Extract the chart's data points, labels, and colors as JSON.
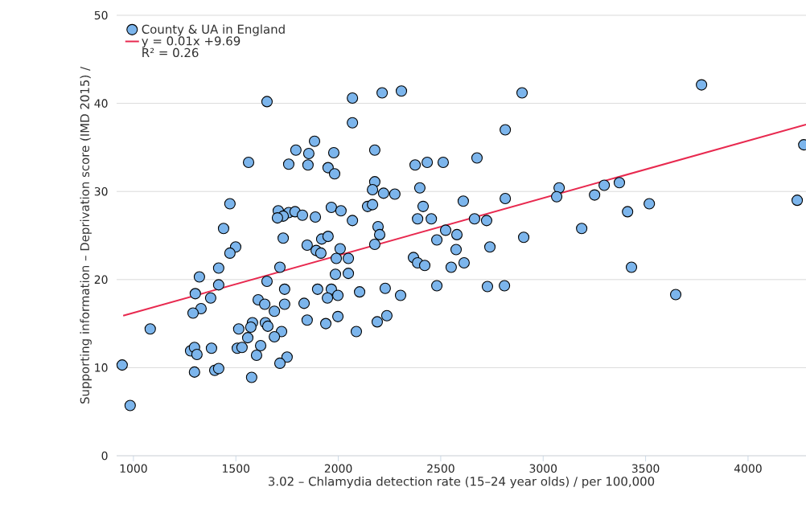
{
  "chart_data": {
    "type": "scatter",
    "xlabel": "3.02 – Chlamydia detection rate (15–24 year olds) / per 100,000",
    "ylabel": "Supporting information – Deprivation score (IMD 2015) /",
    "xlim": [
      918,
      4283
    ],
    "ylim": [
      0,
      50
    ],
    "xticks": [
      1000,
      1500,
      2000,
      2500,
      3000,
      3500,
      4000
    ],
    "yticks": [
      0,
      10,
      20,
      30,
      40,
      50
    ],
    "grid": "y",
    "legend": "top left",
    "annotations": [
      "R² = 0.26"
    ],
    "series": [
      {
        "name": "County & UA in England",
        "color": "#7cb5ec",
        "marker": "circle",
        "x": [
          945,
          984,
          1082,
          1440,
          1499,
          1471,
          1731,
          1848,
          1919,
          1950,
          1892,
          1915,
          2009,
          1990,
          1322,
          1416,
          1416,
          1302,
          1377,
          1330,
          1291,
          1715,
          1652,
          1738,
          1609,
          1641,
          1738,
          1688,
          1833,
          1848,
          1899,
          1966,
          1947,
          1998,
          1939,
          1998,
          1581,
          1514,
          1573,
          1644,
          1656,
          1723,
          1688,
          1558,
          1621,
          1507,
          1530,
          1601,
          1750,
          1715,
          1279,
          1298,
          1310,
          1381,
          1298,
          1397,
          1416,
          1577,
          1652,
          1562,
          1884,
          1793,
          1856,
          1978,
          1758,
          1852,
          1950,
          1982,
          1471,
          1707,
          1758,
          1789,
          1731,
          1825,
          1888,
          1703,
          1966,
          2013,
          2069,
          2214,
          2308,
          2897,
          2069,
          2815,
          2178,
          2375,
          2434,
          2512,
          2677,
          2178,
          2167,
          2221,
          2276,
          2398,
          3078,
          3066,
          2815,
          2069,
          2143,
          2167,
          2414,
          2610,
          2387,
          2454,
          2665,
          2724,
          2194,
          2202,
          2524,
          2579,
          2905,
          2178,
          2049,
          1986,
          2049,
          2481,
          2575,
          2740,
          2367,
          2387,
          2422,
          2551,
          2614,
          2481,
          2728,
          2811,
          2104,
          2229,
          2304,
          2237,
          2190,
          2088,
          3773,
          4272,
          3298,
          3372,
          3251,
          3518,
          3412,
          3188,
          4240,
          3431,
          3647
        ],
        "values": [
          10.3,
          5.7,
          14.4,
          25.8,
          23.7,
          23.0,
          24.7,
          23.9,
          24.6,
          24.9,
          23.3,
          23.0,
          23.5,
          22.4,
          20.3,
          21.3,
          19.4,
          18.4,
          17.9,
          16.7,
          16.2,
          21.4,
          19.8,
          18.9,
          17.7,
          17.2,
          17.2,
          16.4,
          17.3,
          15.4,
          18.9,
          18.9,
          17.9,
          18.2,
          15.0,
          15.8,
          15.1,
          14.4,
          14.6,
          15.1,
          14.7,
          14.1,
          13.5,
          13.4,
          12.5,
          12.2,
          12.3,
          11.4,
          11.2,
          10.5,
          11.9,
          12.3,
          11.5,
          12.2,
          9.5,
          9.7,
          9.9,
          8.9,
          40.2,
          33.3,
          35.7,
          34.7,
          34.3,
          34.4,
          33.1,
          33.0,
          32.7,
          32.0,
          28.6,
          27.8,
          27.6,
          27.7,
          27.2,
          27.3,
          27.1,
          27.0,
          28.2,
          27.8,
          40.6,
          41.2,
          41.4,
          41.2,
          37.8,
          37.0,
          34.7,
          33.0,
          33.3,
          33.3,
          33.8,
          31.1,
          30.2,
          29.8,
          29.7,
          30.4,
          30.4,
          29.4,
          29.2,
          26.7,
          28.3,
          28.5,
          28.3,
          28.9,
          26.9,
          26.9,
          26.9,
          26.7,
          26.0,
          25.1,
          25.6,
          25.1,
          24.8,
          24.0,
          22.4,
          20.6,
          20.7,
          24.5,
          23.4,
          23.7,
          22.5,
          21.9,
          21.6,
          21.4,
          21.9,
          19.3,
          19.2,
          19.3,
          18.6,
          19.0,
          18.2,
          15.9,
          15.2,
          14.1,
          42.1,
          35.3,
          30.7,
          31.0,
          29.6,
          28.6,
          27.7,
          25.8,
          29.0,
          21.4,
          18.3
        ]
      },
      {
        "name": "y = 0.01x +9.69",
        "type": "line",
        "marker": "none",
        "color": "#e8294f",
        "x": [
          950,
          4283
        ],
        "values": [
          15.9,
          37.6
        ]
      }
    ]
  }
}
